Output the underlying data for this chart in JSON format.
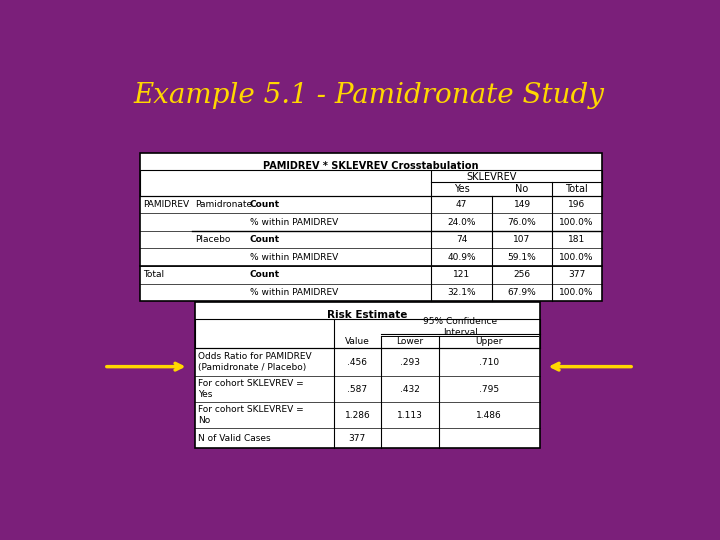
{
  "title": "Example 5.1 - Pamidronate Study",
  "bg_color": "#7B1F7A",
  "title_color": "#FFD700",
  "title_fontsize": 20,
  "table1_title": "PAMIDREV * SKLEVREV Crosstabulation",
  "table1_rows": [
    [
      "PAMIDREV",
      "Pamidronate",
      "Count",
      "47",
      "149",
      "196"
    ],
    [
      "",
      "",
      "% within PAMIDREV",
      "24.0%",
      "76.0%",
      "100.0%"
    ],
    [
      "",
      "Placebo",
      "Count",
      "74",
      "107",
      "181"
    ],
    [
      "",
      "",
      "% within PAMIDREV",
      "40.9%",
      "59.1%",
      "100.0%"
    ],
    [
      "Total",
      "",
      "Count",
      "121",
      "256",
      "377"
    ],
    [
      "",
      "",
      "% within PAMIDREV",
      "32.1%",
      "67.9%",
      "100.0%"
    ]
  ],
  "table2_title": "Risk Estimate",
  "table2_rows": [
    [
      "Odds Ratio for PAMIDREV\n(Pamidronate / Placebo)",
      ".456",
      ".293",
      ".710"
    ],
    [
      "For cohort SKLEVREV =\nYes",
      ".587",
      ".432",
      ".795"
    ],
    [
      "For cohort SKLEVREV =\nNo",
      "1.286",
      "1.113",
      "1.486"
    ],
    [
      "N of Valid Cases",
      "377",
      "",
      ""
    ]
  ],
  "arrow_color": "#FFD700",
  "white": "#FFFFFF",
  "black": "#000000"
}
